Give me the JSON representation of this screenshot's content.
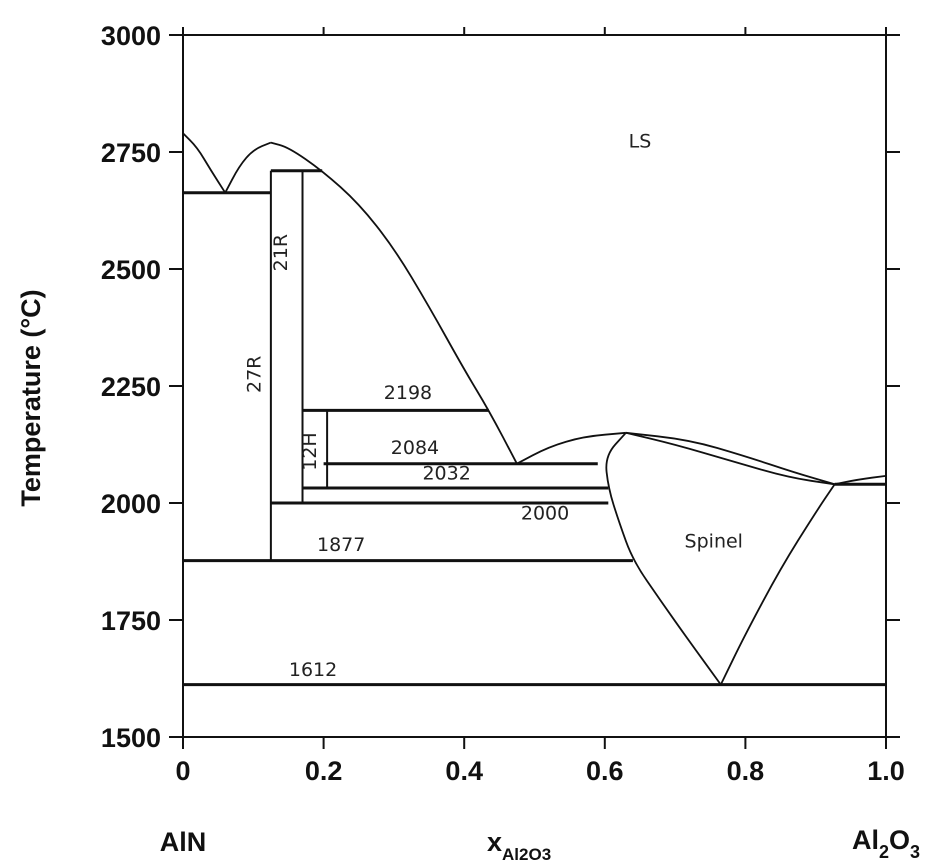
{
  "chart_data": {
    "type": "line",
    "title": "",
    "ylabel": "Temperature (°C)",
    "xlabel_main": "x",
    "xlabel_sub": "Al2O3",
    "left_component": "AlN",
    "right_component_main": "Al",
    "right_component_sub1": "2",
    "right_component_mid": "O",
    "right_component_sub2": "3",
    "xlim": [
      0,
      1.0
    ],
    "ylim": [
      1500,
      3000
    ],
    "x_ticks": [
      0,
      0.2,
      0.4,
      0.6,
      0.8,
      1.0
    ],
    "x_tick_labels": [
      "0",
      "0.2",
      "0.4",
      "0.6",
      "0.8",
      "1.0"
    ],
    "y_ticks": [
      1500,
      1750,
      2000,
      2250,
      2500,
      2750,
      3000
    ],
    "y_tick_labels": [
      "1500",
      "1750",
      "2000",
      "2250",
      "2500",
      "2750",
      "3000"
    ],
    "grid": false,
    "region_labels": [
      {
        "text": "LS",
        "x": 0.65,
        "y": 2760
      },
      {
        "text": "Spinel",
        "x": 0.755,
        "y": 1905
      }
    ],
    "isotherm_labels": [
      {
        "text": "2198",
        "x": 0.32,
        "y": 2222
      },
      {
        "text": "2084",
        "x": 0.33,
        "y": 2105
      },
      {
        "text": "2032",
        "x": 0.375,
        "y": 2050
      },
      {
        "text": "2000",
        "x": 0.515,
        "y": 1965
      },
      {
        "text": "1877",
        "x": 0.225,
        "y": 1897
      },
      {
        "text": "1612",
        "x": 0.185,
        "y": 1630
      }
    ],
    "phase_labels": [
      {
        "text": "21R",
        "x": 0.148,
        "y": 2535,
        "rotate": -90
      },
      {
        "text": "27R",
        "x": 0.11,
        "y": 2275,
        "rotate": -90
      },
      {
        "text": "12H",
        "x": 0.189,
        "y": 2110,
        "rotate": -90
      }
    ],
    "isotherms": [
      {
        "T": 2663,
        "x": [
          0,
          0.125
        ]
      },
      {
        "T": 2710,
        "x": [
          0.125,
          0.198
        ]
      },
      {
        "T": 2198,
        "x": [
          0.17,
          0.435
        ]
      },
      {
        "T": 2084,
        "x": [
          0.2,
          0.59
        ]
      },
      {
        "T": 2032,
        "x": [
          0.17,
          0.605
        ]
      },
      {
        "T": 2000,
        "x": [
          0.125,
          0.605
        ]
      },
      {
        "T": 1877,
        "x": [
          0,
          0.64
        ]
      },
      {
        "T": 1612,
        "x": [
          0,
          1.0
        ]
      },
      {
        "T": 2040,
        "x": [
          0.927,
          1.0
        ]
      }
    ],
    "vertical_lines": [
      {
        "x": 0.125,
        "T": [
          1877,
          2710
        ]
      },
      {
        "x": 0.17,
        "T": [
          2000,
          2710
        ]
      },
      {
        "x": 0.205,
        "T": [
          2032,
          2198
        ]
      }
    ],
    "boundary_curves": [
      {
        "name": "liquidus-left",
        "points": [
          [
            0,
            2790
          ],
          [
            0.02,
            2760
          ],
          [
            0.04,
            2710
          ],
          [
            0.06,
            2663
          ]
        ]
      },
      {
        "name": "liquidus-27r",
        "points": [
          [
            0.06,
            2663
          ],
          [
            0.08,
            2720
          ],
          [
            0.1,
            2755
          ],
          [
            0.125,
            2770
          ]
        ]
      },
      {
        "name": "liquidus-21r",
        "points": [
          [
            0.125,
            2770
          ],
          [
            0.15,
            2760
          ],
          [
            0.198,
            2710
          ],
          [
            0.25,
            2640
          ],
          [
            0.3,
            2545
          ],
          [
            0.35,
            2420
          ],
          [
            0.4,
            2285
          ],
          [
            0.435,
            2198
          ],
          [
            0.475,
            2084
          ]
        ]
      },
      {
        "name": "liquidus-spinel-left",
        "points": [
          [
            0.475,
            2084
          ],
          [
            0.52,
            2120
          ],
          [
            0.57,
            2142
          ],
          [
            0.63,
            2150
          ]
        ]
      },
      {
        "name": "liquidus-spinel-right",
        "points": [
          [
            0.63,
            2150
          ],
          [
            0.72,
            2135
          ],
          [
            0.8,
            2100
          ],
          [
            0.87,
            2065
          ],
          [
            0.927,
            2040
          ]
        ]
      },
      {
        "name": "solidus-spinel-top",
        "points": [
          [
            0.63,
            2150
          ],
          [
            0.7,
            2125
          ],
          [
            0.78,
            2090
          ],
          [
            0.86,
            2055
          ],
          [
            0.927,
            2040
          ]
        ]
      },
      {
        "name": "spinel-left-boundary",
        "points": [
          [
            0.63,
            2150
          ],
          [
            0.6,
            2100
          ],
          [
            0.605,
            2032
          ],
          [
            0.62,
            1960
          ],
          [
            0.64,
            1877
          ],
          [
            0.68,
            1790
          ],
          [
            0.72,
            1705
          ],
          [
            0.765,
            1612
          ]
        ]
      },
      {
        "name": "spinel-right-boundary",
        "points": [
          [
            0.765,
            1612
          ],
          [
            0.8,
            1720
          ],
          [
            0.85,
            1860
          ],
          [
            0.9,
            1980
          ],
          [
            0.927,
            2040
          ]
        ]
      },
      {
        "name": "right-edge-liquidus",
        "points": [
          [
            0.927,
            2040
          ],
          [
            0.96,
            2050
          ],
          [
            1.0,
            2058
          ]
        ]
      },
      {
        "name": "left-axis-spike",
        "points": [
          [
            0,
            2663
          ],
          [
            0,
            2990
          ]
        ]
      }
    ]
  }
}
